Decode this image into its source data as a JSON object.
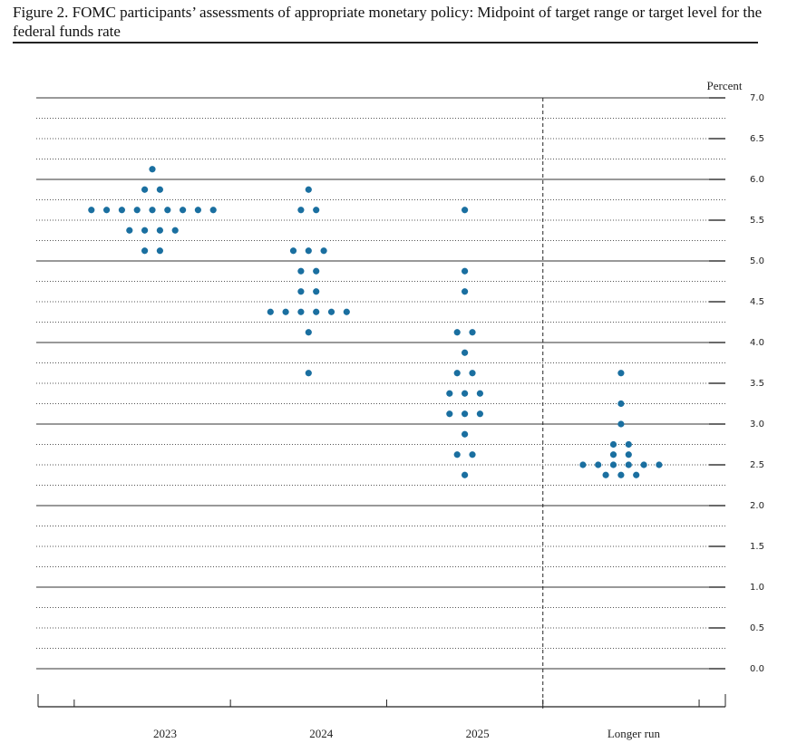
{
  "chart_data": {
    "type": "dot",
    "title": "Figure 2.  FOMC participants’ assessments of appropriate monetary policy: Midpoint of target range or target level for the federal funds rate",
    "y_label": "Percent",
    "categories": [
      "2023",
      "2024",
      "2025",
      "Longer run"
    ],
    "values": [
      [
        6.125,
        5.875,
        5.875,
        5.625,
        5.625,
        5.625,
        5.625,
        5.625,
        5.625,
        5.625,
        5.625,
        5.625,
        5.375,
        5.375,
        5.375,
        5.375,
        5.125,
        5.125
      ],
      [
        5.875,
        5.625,
        5.625,
        5.125,
        5.125,
        5.125,
        4.875,
        4.875,
        4.625,
        4.625,
        4.375,
        4.375,
        4.375,
        4.375,
        4.375,
        4.375,
        4.125,
        3.625
      ],
      [
        5.625,
        4.875,
        4.625,
        4.125,
        4.125,
        3.875,
        3.625,
        3.625,
        3.375,
        3.375,
        3.375,
        3.125,
        3.125,
        3.125,
        2.875,
        2.625,
        2.625,
        2.375
      ],
      [
        3.625,
        3.25,
        3.0,
        2.75,
        2.75,
        2.625,
        2.625,
        2.5,
        2.5,
        2.5,
        2.5,
        2.5,
        2.5,
        2.375,
        2.375,
        2.375
      ]
    ],
    "color": "#1a6fa0",
    "ylim": [
      0,
      7
    ],
    "yticks": [
      {
        "value": 0,
        "label": "0.0"
      },
      0.5,
      {
        "value": 1,
        "label": "1.0"
      },
      1.5,
      {
        "value": 2,
        "label": "2.0"
      },
      2.5,
      {
        "value": 3,
        "label": "3.0"
      },
      3.5,
      {
        "value": 4,
        "label": "4.0"
      },
      4.5,
      {
        "value": 5,
        "label": "5.0"
      },
      5.5,
      {
        "value": 6,
        "label": "6.0"
      },
      6.5,
      {
        "value": 7,
        "label": "7.0"
      }
    ],
    "grid": true
  }
}
